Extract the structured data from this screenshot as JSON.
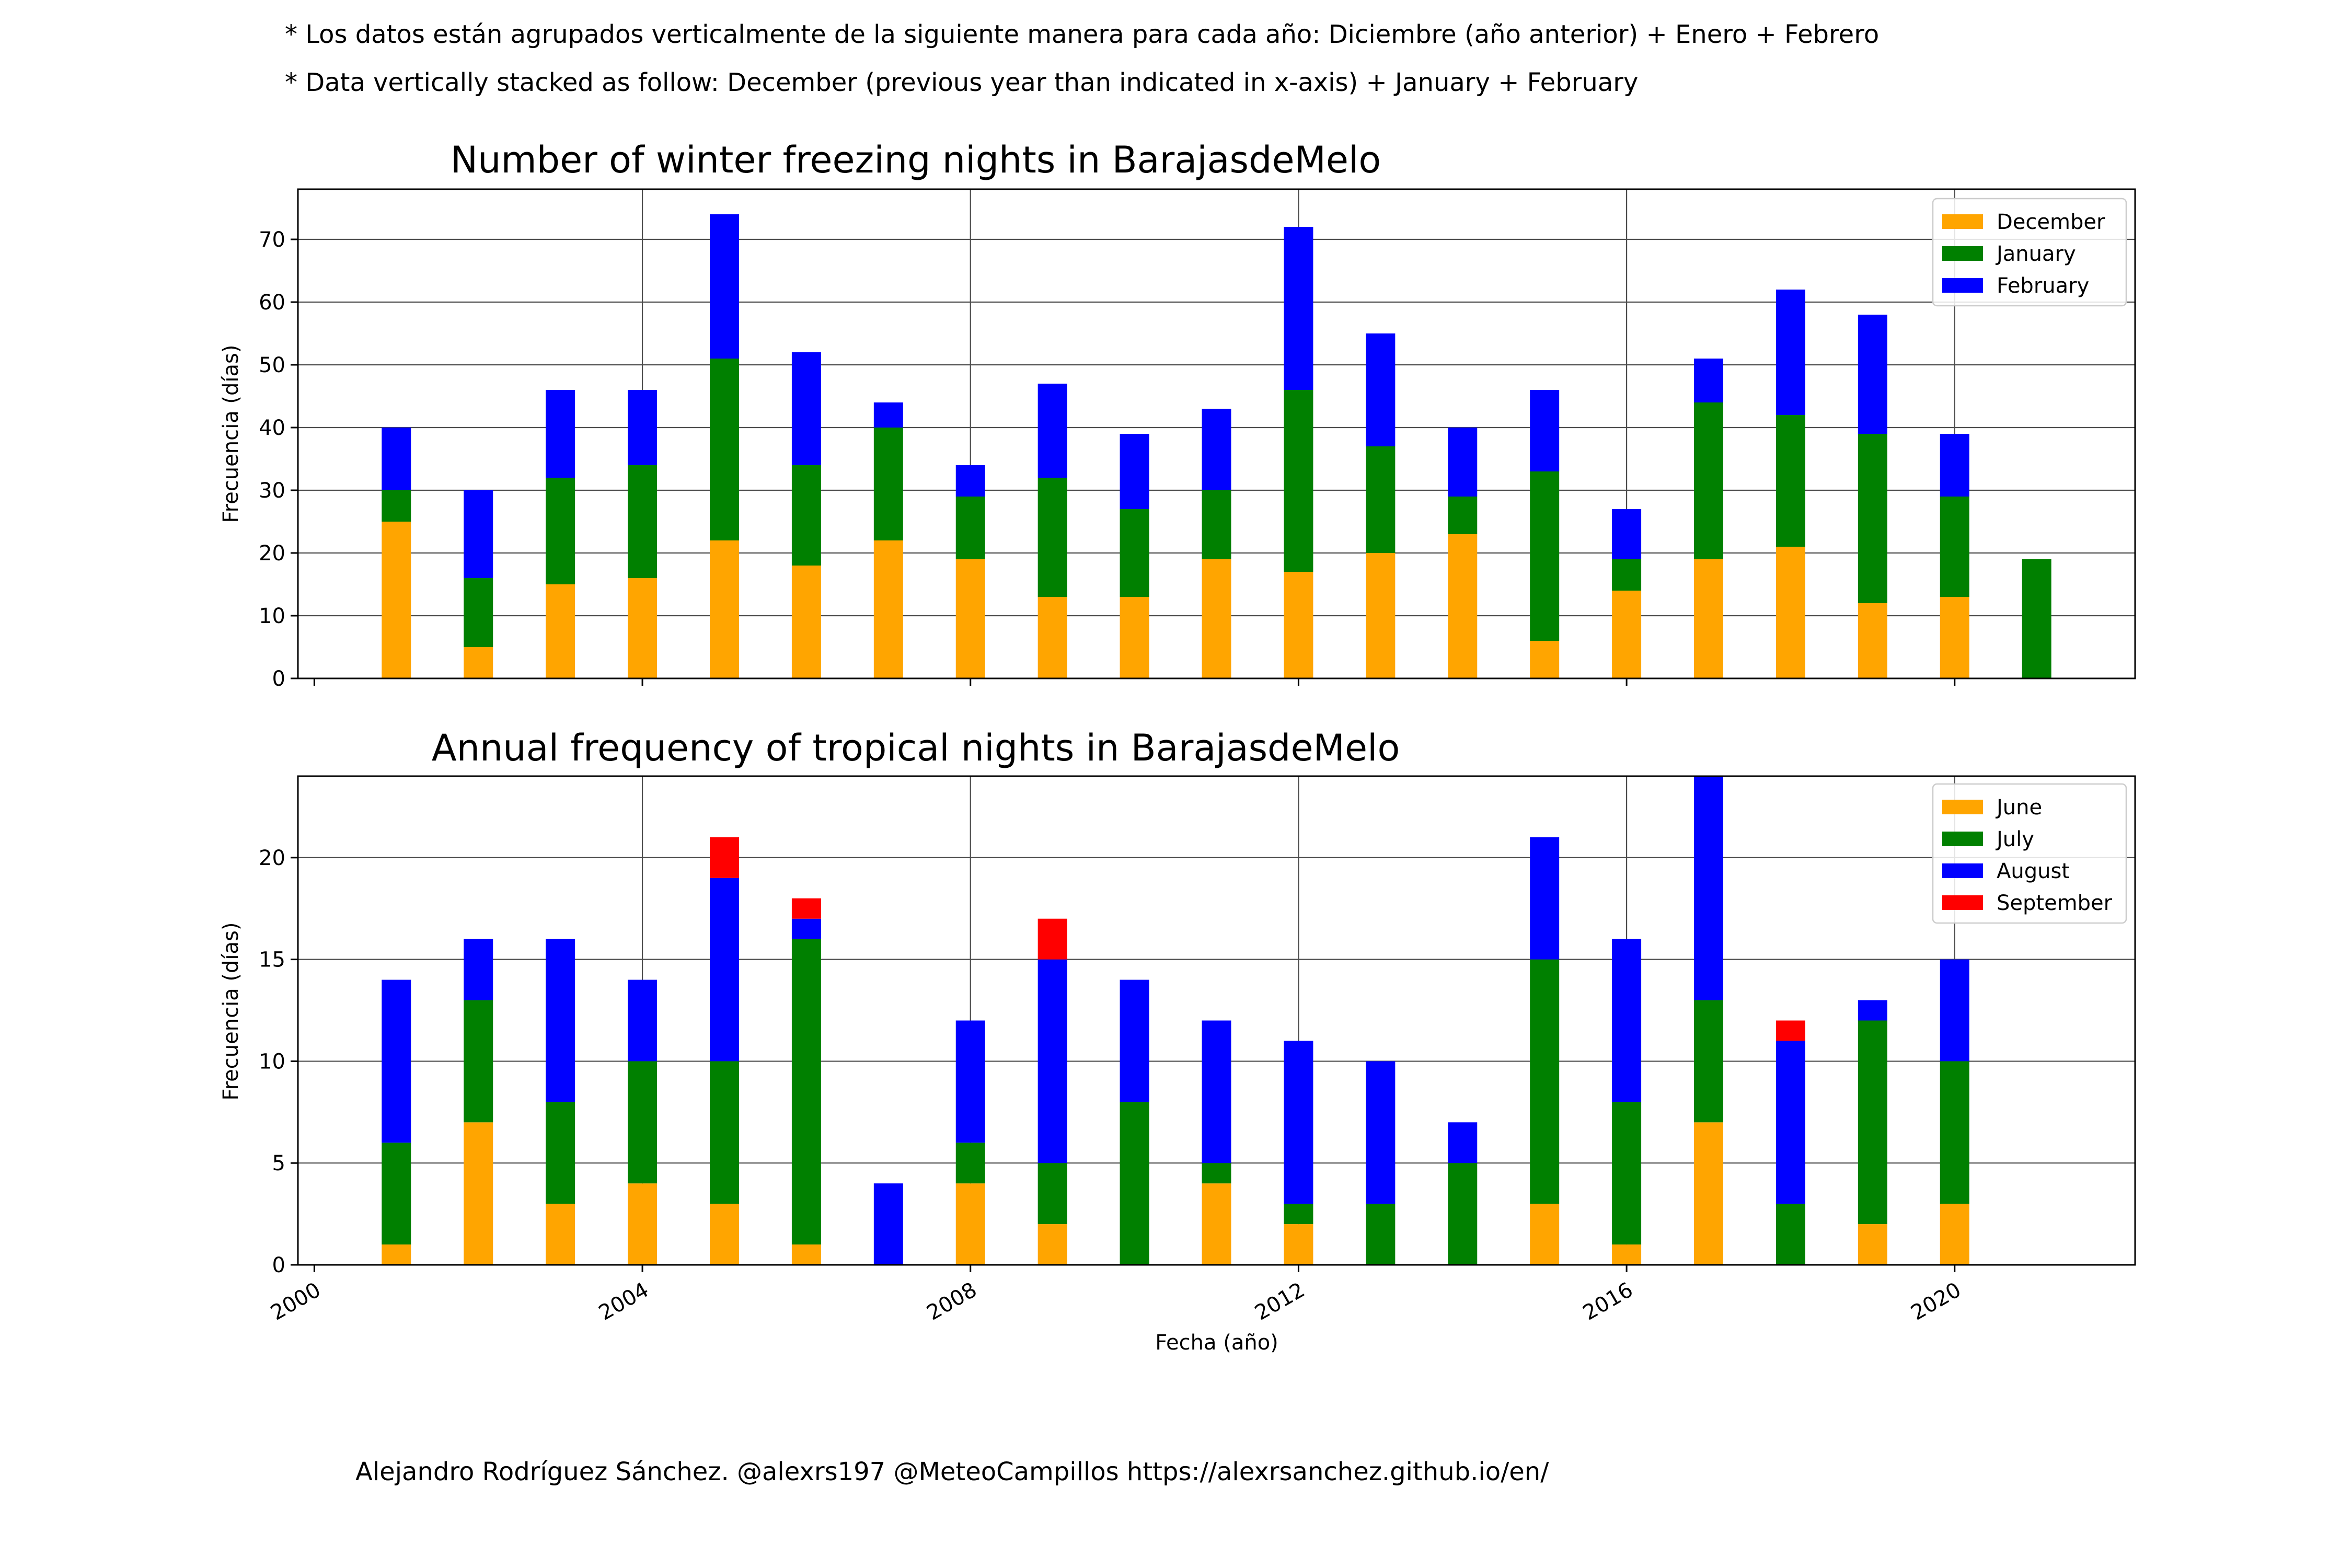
{
  "notes": {
    "line1": "* Los datos están agrupados verticalmente de la siguiente manera para cada año: Diciembre (año anterior) + Enero  + Febrero",
    "line2": "* Data vertically stacked as follow: December (previous year than indicated in x-axis) + January  + February"
  },
  "credit": "Alejandro Rodríguez Sánchez. @alexrs197 @MeteoCampillos   https://alexrsanchez.github.io/en/",
  "colors": {
    "orange": "#FFA500",
    "green": "#008000",
    "blue": "#0000FF",
    "red": "#FF0000"
  },
  "xaxis": {
    "label": "Fecha (año)",
    "ticks": [
      2000,
      2004,
      2008,
      2012,
      2016,
      2020
    ],
    "tick_labels": [
      "2000",
      "2004",
      "2008",
      "2012",
      "2016",
      "2020"
    ],
    "range": [
      1999.8,
      2022.2
    ]
  },
  "chart_data": [
    {
      "type": "bar",
      "stacked": true,
      "title": "Number of winter freezing nights in BarajasdeMelo",
      "ylabel": "Frecuencia (días)",
      "ylim": [
        0,
        78
      ],
      "yticks": [
        0,
        10,
        20,
        30,
        40,
        50,
        60,
        70
      ],
      "grid": true,
      "legend_position": "top-right",
      "x": [
        2001,
        2002,
        2003,
        2004,
        2005,
        2006,
        2007,
        2008,
        2009,
        2010,
        2011,
        2012,
        2013,
        2014,
        2015,
        2016,
        2017,
        2018,
        2019,
        2020,
        2021
      ],
      "series": [
        {
          "name": "December",
          "color": "#FFA500",
          "values": [
            25,
            5,
            15,
            16,
            22,
            18,
            22,
            19,
            13,
            13,
            19,
            17,
            20,
            23,
            6,
            14,
            19,
            21,
            12,
            13,
            0
          ]
        },
        {
          "name": "January",
          "color": "#008000",
          "values": [
            5,
            11,
            17,
            18,
            29,
            16,
            18,
            10,
            19,
            14,
            11,
            29,
            17,
            6,
            27,
            5,
            25,
            21,
            27,
            16,
            19
          ]
        },
        {
          "name": "February",
          "color": "#0000FF",
          "values": [
            10,
            14,
            14,
            12,
            23,
            18,
            4,
            5,
            15,
            12,
            13,
            26,
            18,
            11,
            13,
            8,
            7,
            20,
            19,
            10,
            0
          ]
        }
      ]
    },
    {
      "type": "bar",
      "stacked": true,
      "title": "Annual frequency of tropical nights in BarajasdeMelo",
      "ylabel": "Frecuencia (días)",
      "ylim": [
        0,
        24
      ],
      "yticks": [
        0,
        5,
        10,
        15,
        20
      ],
      "grid": true,
      "legend_position": "top-right",
      "x": [
        2001,
        2002,
        2003,
        2004,
        2005,
        2006,
        2007,
        2008,
        2009,
        2010,
        2011,
        2012,
        2013,
        2014,
        2015,
        2016,
        2017,
        2018,
        2019,
        2020
      ],
      "series": [
        {
          "name": "June",
          "color": "#FFA500",
          "values": [
            1,
            7,
            3,
            4,
            3,
            1,
            0,
            4,
            2,
            0,
            4,
            2,
            0,
            0,
            3,
            1,
            7,
            0,
            2,
            3
          ]
        },
        {
          "name": "July",
          "color": "#008000",
          "values": [
            5,
            6,
            5,
            6,
            7,
            15,
            0,
            2,
            3,
            8,
            1,
            1,
            3,
            5,
            12,
            7,
            6,
            3,
            10,
            7
          ]
        },
        {
          "name": "August",
          "color": "#0000FF",
          "values": [
            8,
            3,
            8,
            4,
            9,
            1,
            4,
            6,
            10,
            6,
            7,
            8,
            7,
            2,
            6,
            8,
            11,
            8,
            1,
            5
          ]
        },
        {
          "name": "September",
          "color": "#FF0000",
          "values": [
            0,
            0,
            0,
            0,
            2,
            1,
            0,
            0,
            2,
            0,
            0,
            0,
            0,
            0,
            0,
            0,
            0,
            1,
            0,
            0
          ]
        }
      ]
    }
  ]
}
